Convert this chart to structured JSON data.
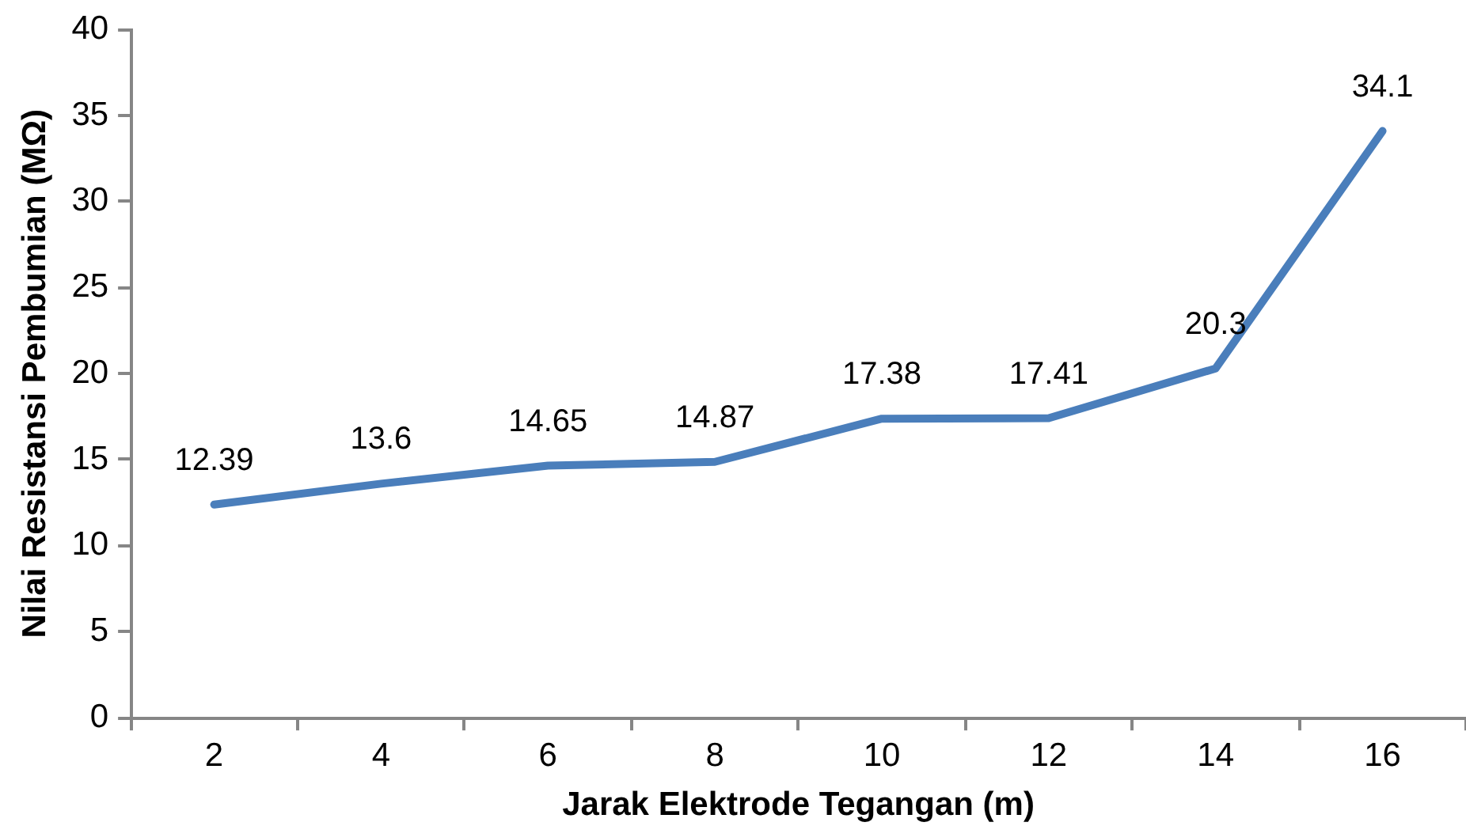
{
  "chart_data": {
    "type": "line",
    "xlabel": "Jarak Elektrode Tegangan (m)",
    "ylabel": "Nilai Resistansi Pembumian (MΩ)",
    "categories": [
      "2",
      "4",
      "6",
      "8",
      "10",
      "12",
      "14",
      "16"
    ],
    "values": [
      12.39,
      13.6,
      14.65,
      14.87,
      17.38,
      17.41,
      20.3,
      34.1
    ],
    "color": "#4a7ebb",
    "ylim": [
      0,
      40
    ],
    "yticks": [
      0,
      5,
      10,
      15,
      20,
      25,
      30,
      35,
      40
    ],
    "grid": false,
    "legend": false,
    "marker": "none",
    "data_labels": true
  }
}
